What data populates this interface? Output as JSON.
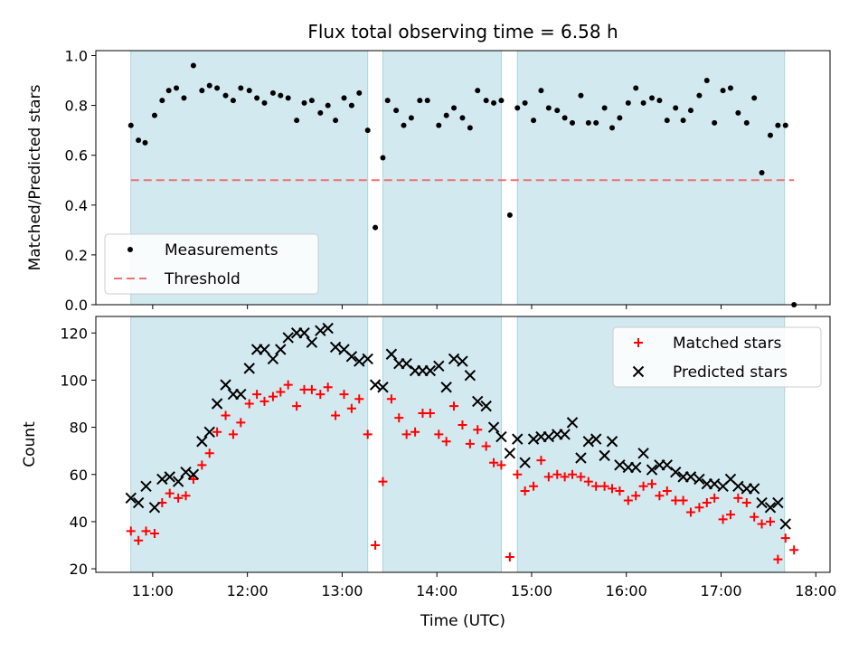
{
  "chart_data": {
    "title": "Flux total observing time = 6.58 h",
    "xlabel": "Time (UTC)",
    "x_unit": "hours UTC",
    "xlim": [
      10.4,
      18.15
    ],
    "x_ticks": [
      11,
      12,
      13,
      14,
      15,
      16,
      17,
      18
    ],
    "x_tick_labels": [
      "11:00",
      "12:00",
      "13:00",
      "14:00",
      "15:00",
      "16:00",
      "17:00",
      "18:00"
    ],
    "observing_windows": [
      [
        10.77,
        13.27
      ],
      [
        13.43,
        14.68
      ],
      [
        14.85,
        17.67
      ]
    ],
    "window_color": "#d3e9f0",
    "panels": [
      {
        "type": "scatter",
        "ylabel": "Matched/Predicted stars",
        "ylim": [
          0.0,
          1.02
        ],
        "y_ticks": [
          0.0,
          0.2,
          0.4,
          0.6,
          0.8,
          1.0
        ],
        "y_tick_labels": [
          "0.0",
          "0.2",
          "0.4",
          "0.6",
          "0.8",
          "1.0"
        ],
        "legend": "lower-left",
        "threshold": {
          "name": "Threshold",
          "value": 0.5,
          "x_range": [
            10.77,
            17.77
          ],
          "color": "#f07070"
        },
        "series": [
          {
            "name": "Measurements",
            "marker": "dot",
            "color": "#000000",
            "x": [
              10.77,
              10.85,
              10.92,
              11.02,
              11.1,
              11.17,
              11.25,
              11.33,
              11.43,
              11.52,
              11.6,
              11.68,
              11.77,
              11.85,
              11.93,
              12.02,
              12.1,
              12.18,
              12.27,
              12.35,
              12.43,
              12.52,
              12.6,
              12.68,
              12.77,
              12.85,
              12.93,
              13.02,
              13.1,
              13.18,
              13.27,
              13.35,
              13.43,
              13.48,
              13.57,
              13.65,
              13.73,
              13.82,
              13.9,
              14.02,
              14.1,
              14.18,
              14.27,
              14.35,
              14.43,
              14.52,
              14.6,
              14.68,
              14.77,
              14.85,
              14.93,
              15.02,
              15.1,
              15.18,
              15.27,
              15.35,
              15.43,
              15.52,
              15.6,
              15.68,
              15.77,
              15.85,
              15.93,
              16.02,
              16.1,
              16.18,
              16.27,
              16.35,
              16.43,
              16.52,
              16.6,
              16.68,
              16.77,
              16.85,
              16.93,
              17.02,
              17.1,
              17.18,
              17.27,
              17.35,
              17.43,
              17.52,
              17.6,
              17.68,
              17.77
            ],
            "y": [
              0.72,
              0.66,
              0.65,
              0.76,
              0.82,
              0.86,
              0.87,
              0.83,
              0.96,
              0.86,
              0.88,
              0.87,
              0.84,
              0.82,
              0.87,
              0.86,
              0.83,
              0.81,
              0.85,
              0.84,
              0.83,
              0.74,
              0.81,
              0.82,
              0.77,
              0.8,
              0.74,
              0.83,
              0.8,
              0.85,
              0.7,
              0.31,
              0.59,
              0.82,
              0.78,
              0.72,
              0.75,
              0.82,
              0.82,
              0.72,
              0.76,
              0.79,
              0.75,
              0.71,
              0.86,
              0.82,
              0.81,
              0.82,
              0.36,
              0.79,
              0.81,
              0.74,
              0.86,
              0.79,
              0.78,
              0.75,
              0.73,
              0.84,
              0.73,
              0.73,
              0.79,
              0.71,
              0.75,
              0.81,
              0.87,
              0.81,
              0.83,
              0.82,
              0.74,
              0.79,
              0.74,
              0.78,
              0.84,
              0.9,
              0.73,
              0.86,
              0.87,
              0.77,
              0.73,
              0.83,
              0.53,
              0.68,
              0.72,
              0.72,
              0.0
            ]
          }
        ]
      },
      {
        "type": "scatter",
        "ylabel": "Count",
        "ylim": [
          18.5,
          127
        ],
        "y_ticks": [
          20,
          40,
          60,
          80,
          100,
          120
        ],
        "y_tick_labels": [
          "20",
          "40",
          "60",
          "80",
          "100",
          "120"
        ],
        "legend": "top-right",
        "series": [
          {
            "name": "Matched stars",
            "marker": "plus",
            "color": "#ff0000",
            "x": [
              10.77,
              10.85,
              10.93,
              11.02,
              11.1,
              11.18,
              11.27,
              11.35,
              11.43,
              11.52,
              11.6,
              11.68,
              11.77,
              11.85,
              11.93,
              12.02,
              12.1,
              12.18,
              12.27,
              12.35,
              12.43,
              12.52,
              12.6,
              12.68,
              12.77,
              12.85,
              12.93,
              13.02,
              13.1,
              13.18,
              13.27,
              13.35,
              13.43,
              13.52,
              13.6,
              13.68,
              13.77,
              13.85,
              13.93,
              14.02,
              14.1,
              14.18,
              14.27,
              14.35,
              14.43,
              14.52,
              14.6,
              14.68,
              14.77,
              14.85,
              14.93,
              15.02,
              15.1,
              15.18,
              15.27,
              15.35,
              15.43,
              15.52,
              15.6,
              15.68,
              15.77,
              15.85,
              15.93,
              16.02,
              16.1,
              16.18,
              16.27,
              16.35,
              16.43,
              16.52,
              16.6,
              16.68,
              16.77,
              16.85,
              16.93,
              17.02,
              17.1,
              17.18,
              17.27,
              17.35,
              17.43,
              17.52,
              17.6,
              17.68,
              17.77
            ],
            "y": [
              36,
              32,
              36,
              35,
              48,
              52,
              50,
              51,
              58,
              64,
              69,
              78,
              85,
              77,
              82,
              90,
              94,
              91,
              93,
              95,
              98,
              89,
              96,
              96,
              94,
              97,
              85,
              94,
              88,
              92,
              77,
              30,
              57,
              92,
              84,
              77,
              78,
              86,
              86,
              77,
              74,
              89,
              81,
              73,
              79,
              72,
              65,
              64,
              25,
              60,
              53,
              55,
              66,
              59,
              60,
              59,
              60,
              59,
              57,
              55,
              55,
              54,
              53,
              49,
              51,
              55,
              56,
              51,
              53,
              49,
              49,
              44,
              46,
              48,
              50,
              41,
              43,
              50,
              48,
              42,
              39,
              40,
              24,
              33,
              28
            ]
          },
          {
            "name": "Predicted stars",
            "marker": "x",
            "color": "#000000",
            "x": [
              10.77,
              10.85,
              10.93,
              11.02,
              11.1,
              11.18,
              11.27,
              11.35,
              11.43,
              11.52,
              11.6,
              11.68,
              11.77,
              11.85,
              11.93,
              12.02,
              12.1,
              12.18,
              12.27,
              12.35,
              12.43,
              12.52,
              12.6,
              12.68,
              12.77,
              12.85,
              12.93,
              13.02,
              13.1,
              13.18,
              13.27,
              13.35,
              13.43,
              13.52,
              13.6,
              13.68,
              13.77,
              13.85,
              13.93,
              14.02,
              14.1,
              14.18,
              14.27,
              14.35,
              14.43,
              14.52,
              14.6,
              14.68,
              14.77,
              14.85,
              14.93,
              15.02,
              15.1,
              15.18,
              15.27,
              15.35,
              15.43,
              15.52,
              15.6,
              15.68,
              15.77,
              15.85,
              15.93,
              16.02,
              16.1,
              16.18,
              16.27,
              16.35,
              16.43,
              16.52,
              16.6,
              16.68,
              16.77,
              16.85,
              16.93,
              17.02,
              17.1,
              17.18,
              17.27,
              17.35,
              17.43,
              17.52,
              17.6,
              17.68
            ],
            "y": [
              50,
              48,
              55,
              46,
              58,
              59,
              57,
              61,
              60,
              74,
              78,
              90,
              98,
              94,
              94,
              105,
              113,
              113,
              109,
              113,
              118,
              120,
              120,
              116,
              121,
              122,
              114,
              113,
              110,
              108,
              109,
              98,
              97,
              111,
              107,
              107,
              104,
              104,
              104,
              106,
              97,
              109,
              108,
              102,
              91,
              89,
              80,
              76,
              69,
              75,
              65,
              75,
              76,
              76,
              77,
              77,
              82,
              67,
              74,
              75,
              68,
              74,
              64,
              63,
              63,
              69,
              62,
              64,
              64,
              61,
              59,
              59,
              58,
              56,
              56,
              55,
              58,
              55,
              54,
              54,
              48,
              46,
              48,
              39
            ]
          }
        ]
      }
    ]
  }
}
